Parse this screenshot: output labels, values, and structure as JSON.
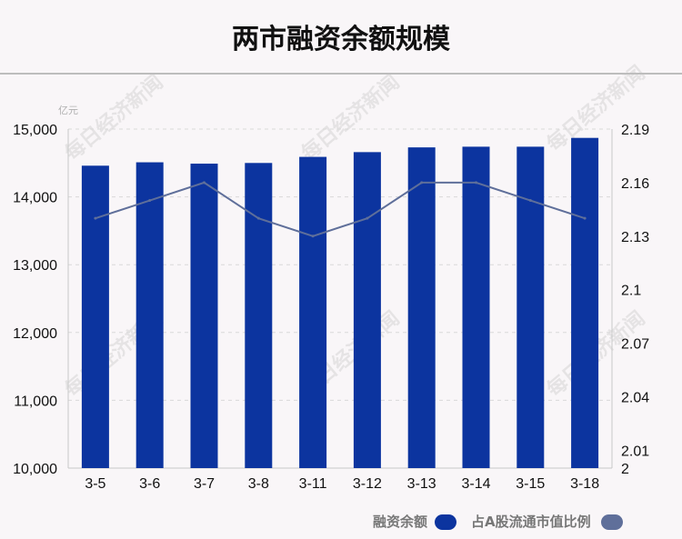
{
  "title": "两市融资余额规模",
  "chart_data": {
    "type": "bar",
    "categories": [
      "3-5",
      "3-6",
      "3-7",
      "3-8",
      "3-11",
      "3-12",
      "3-13",
      "3-14",
      "3-15",
      "3-18"
    ],
    "series": [
      {
        "name": "融资余额",
        "type": "bar",
        "axis": "left",
        "color": "#0c349f",
        "values": [
          14460,
          14510,
          14490,
          14500,
          14590,
          14660,
          14730,
          14740,
          14740,
          14870
        ]
      },
      {
        "name": "占A股流通市值比例",
        "type": "line",
        "axis": "right",
        "color": "#5f6f9a",
        "values": [
          2.14,
          2.15,
          2.16,
          2.14,
          2.13,
          2.14,
          2.16,
          2.16,
          2.15,
          2.14
        ]
      }
    ],
    "y_left": {
      "unit_label": "亿元",
      "ylim": [
        10000,
        15000
      ],
      "ticks": [
        10000,
        11000,
        12000,
        13000,
        14000,
        15000
      ],
      "tick_labels": [
        "10,000",
        "11,000",
        "12,000",
        "13,000",
        "14,000",
        "15,000"
      ]
    },
    "y_right": {
      "ylim": [
        2,
        2.19
      ],
      "ticks": [
        2,
        2.01,
        2.04,
        2.07,
        2.1,
        2.13,
        2.16,
        2.19
      ],
      "tick_labels": [
        "2",
        "2.01",
        "2.04",
        "2.07",
        "2.1",
        "2.13",
        "2.16",
        "2.19"
      ]
    },
    "grid": true,
    "legend_position": "bottom-right"
  },
  "watermark": "每日经济新闻"
}
